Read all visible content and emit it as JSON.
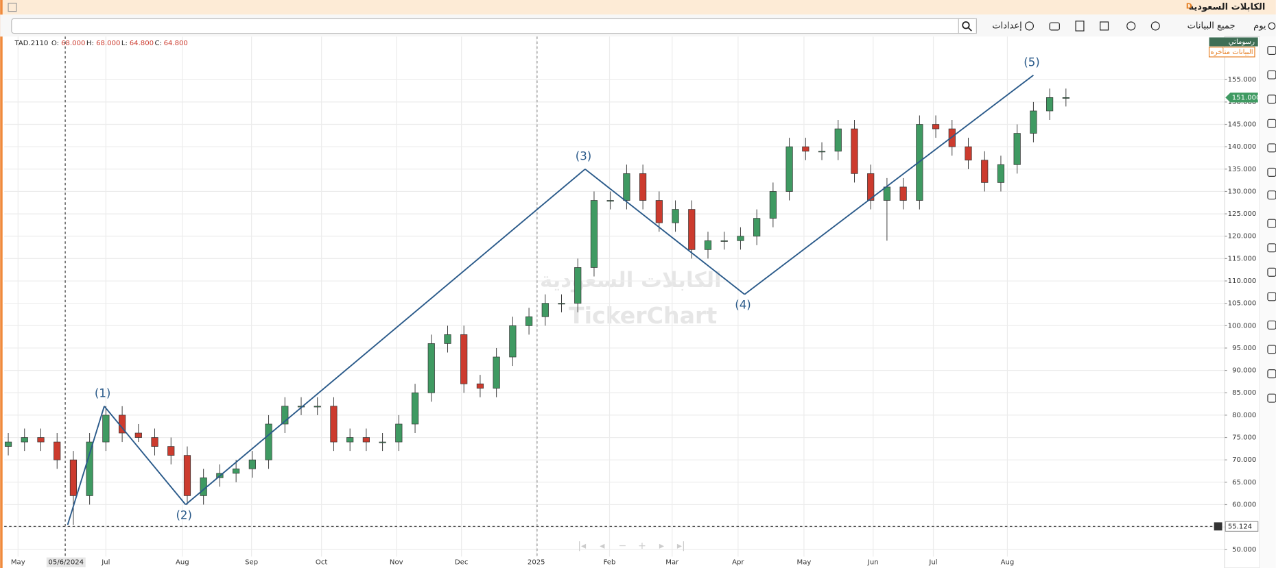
{
  "window": {
    "title": "الكابلات السعودية",
    "badge": "D"
  },
  "toolbar": {
    "period": "يوم",
    "range": "جميع البيانات",
    "settings": "إعدادات"
  },
  "badges": {
    "drawings": "رسوماتي",
    "delayed": "البيانات متأخره"
  },
  "watermark": {
    "name": "الكابلات السعودية",
    "brand": "TickerChart"
  },
  "legend": {
    "symbol": "TAD.2110",
    "open_label": "O:",
    "open": "68.000",
    "high_label": "H:",
    "high": "68.000",
    "low_label": "L:",
    "low": "64.800",
    "close_label": "C:",
    "close": "64.800"
  },
  "chart_data": {
    "type": "candlestick",
    "open": [
      73,
      74,
      75,
      74,
      70,
      62,
      74,
      80,
      76,
      75,
      73,
      71,
      62,
      66,
      67,
      68,
      70,
      78,
      82,
      82,
      82,
      74,
      75,
      74,
      74,
      78,
      85,
      96,
      98,
      87,
      86,
      93,
      100,
      102,
      105,
      105,
      113,
      128,
      128,
      134,
      128,
      123,
      126,
      117,
      119,
      119,
      120,
      124,
      130,
      140,
      139,
      139,
      144,
      134,
      128,
      131,
      128,
      145,
      144,
      140,
      137,
      132,
      136,
      143,
      148,
      151
    ],
    "high": [
      76,
      77,
      77,
      76,
      72,
      76,
      82,
      82,
      78,
      77,
      75,
      73,
      68,
      69,
      70,
      72,
      80,
      84,
      84,
      84,
      84,
      77,
      77,
      76,
      80,
      87,
      98,
      100,
      100,
      89,
      95,
      102,
      104,
      107,
      107,
      115,
      130,
      130,
      136,
      136,
      130,
      128,
      128,
      121,
      121,
      122,
      126,
      132,
      142,
      142,
      141,
      146,
      146,
      136,
      133,
      133,
      147,
      147,
      146,
      142,
      139,
      138,
      145,
      150,
      153,
      153
    ],
    "low": [
      71,
      72,
      72,
      68,
      55.5,
      60,
      72,
      74,
      74,
      71,
      69,
      60,
      60,
      64,
      65,
      66,
      68,
      76,
      80,
      80,
      72,
      72,
      72,
      72,
      72,
      76,
      83,
      94,
      85,
      84,
      84,
      91,
      98,
      100,
      103,
      103,
      111,
      126,
      126,
      126,
      121,
      121,
      115,
      115,
      117,
      117,
      118,
      122,
      128,
      137,
      137,
      137,
      132,
      126,
      119,
      126,
      126,
      142,
      138,
      135,
      130,
      130,
      134,
      141,
      146,
      149
    ],
    "close": [
      74,
      75,
      74,
      70,
      62,
      74,
      80,
      76,
      75,
      73,
      71,
      62,
      66,
      67,
      68,
      70,
      78,
      82,
      82,
      82,
      74,
      75,
      74,
      74,
      78,
      85,
      96,
      98,
      87,
      86,
      93,
      100,
      102,
      105,
      105,
      113,
      128,
      128,
      134,
      128,
      123,
      126,
      117,
      119,
      119,
      120,
      124,
      130,
      140,
      139,
      139,
      144,
      134,
      128,
      131,
      128,
      145,
      144,
      140,
      137,
      132,
      136,
      143,
      148,
      151,
      151
    ],
    "colors": {
      "up": "#3f9a62",
      "down": "#cc3b2e",
      "wave": "#2a5a8a"
    },
    "ylim": [
      48.37,
      164.63
    ],
    "yticks": [
      {
        "value": 50,
        "label": "50.000"
      },
      {
        "value": 55,
        "label": "55.000"
      },
      {
        "value": 60,
        "label": "60.000"
      },
      {
        "value": 65,
        "label": "65.000"
      },
      {
        "value": 70,
        "label": "70.000"
      },
      {
        "value": 75,
        "label": "75.000"
      },
      {
        "value": 80,
        "label": "80.000"
      },
      {
        "value": 85,
        "label": "85.000"
      },
      {
        "value": 90,
        "label": "90.000"
      },
      {
        "value": 95,
        "label": "95.000"
      },
      {
        "value": 100,
        "label": "100.000"
      },
      {
        "value": 105,
        "label": "105.000"
      },
      {
        "value": 110,
        "label": "110.000"
      },
      {
        "value": 115,
        "label": "115.000"
      },
      {
        "value": 120,
        "label": "120.000"
      },
      {
        "value": 125,
        "label": "125.000"
      },
      {
        "value": 130,
        "label": "130.000"
      },
      {
        "value": 135,
        "label": "135.000"
      },
      {
        "value": 140,
        "label": "140.000"
      },
      {
        "value": 145,
        "label": "145.000"
      },
      {
        "value": 150,
        "label": "150.000"
      },
      {
        "value": 155,
        "label": "155.000"
      }
    ],
    "x_labels": [
      "May",
      "Jul",
      "Aug",
      "Sep",
      "Oct",
      "Nov",
      "Dec",
      "2025",
      "Feb",
      "Mar",
      "Apr",
      "May",
      "Jun",
      "Jul",
      "Aug"
    ],
    "grid": true,
    "waves": {
      "start": 55.5,
      "points": [
        {
          "label": "(1)",
          "value": 82
        },
        {
          "label": "(2)",
          "value": 60
        },
        {
          "label": "(3)",
          "value": 135
        },
        {
          "label": "(4)",
          "value": 107
        },
        {
          "label": "(5)",
          "value": 156
        }
      ]
    },
    "crosshair": {
      "value": 55.124,
      "date": "05/6/2024"
    },
    "last_price": {
      "value": 151,
      "label": "151.000"
    }
  }
}
